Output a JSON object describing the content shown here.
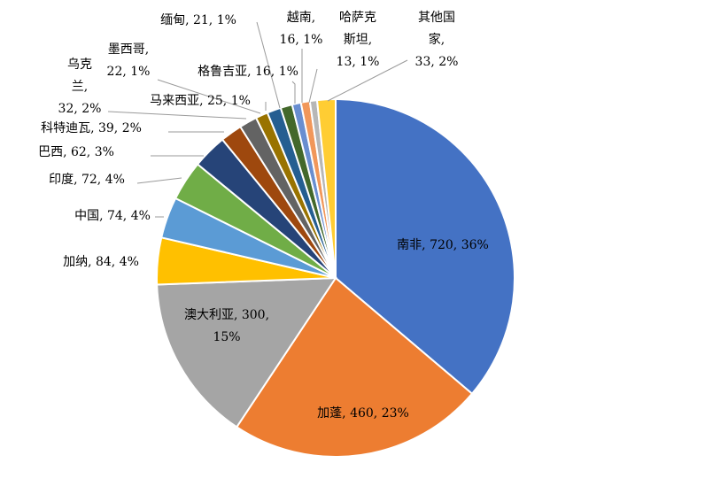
{
  "chart_data": {
    "type": "pie",
    "title": "",
    "slices": [
      {
        "name": "南非",
        "value": 720,
        "percent": "36%",
        "color": "#4472C4"
      },
      {
        "name": "加蓬",
        "value": 460,
        "percent": "23%",
        "color": "#ED7D31"
      },
      {
        "name": "澳大利亚",
        "value": 300,
        "percent": "15%",
        "color": "#A5A5A5"
      },
      {
        "name": "加纳",
        "value": 84,
        "percent": "4%",
        "color": "#FFC000"
      },
      {
        "name": "中国",
        "value": 74,
        "percent": "4%",
        "color": "#5B9BD5"
      },
      {
        "name": "印度",
        "value": 72,
        "percent": "4%",
        "color": "#70AD47"
      },
      {
        "name": "巴西",
        "value": 62,
        "percent": "3%",
        "color": "#264478"
      },
      {
        "name": "科特迪瓦",
        "value": 39,
        "percent": "2%",
        "color": "#9E480E"
      },
      {
        "name": "乌克兰",
        "value": 32,
        "percent": "2%",
        "color": "#636363"
      },
      {
        "name": "墨西哥",
        "value": 22,
        "percent": "1%",
        "color": "#997300"
      },
      {
        "name": "马来西亚",
        "value": 25,
        "percent": "1%",
        "color": "#255E91"
      },
      {
        "name": "缅甸",
        "value": 21,
        "percent": "1%",
        "color": "#43682B"
      },
      {
        "name": "格鲁吉亚",
        "value": 16,
        "percent": "1%",
        "color": "#698ED0"
      },
      {
        "name": "越南",
        "value": 16,
        "percent": "1%",
        "color": "#F1975A"
      },
      {
        "name": "哈萨克斯坦",
        "value": 13,
        "percent": "1%",
        "color": "#B7B7B7"
      },
      {
        "name": "其他国家",
        "value": 33,
        "percent": "2%",
        "color": "#FFCD33"
      }
    ],
    "labels": [
      [
        "南非, 720, 36%"
      ],
      [
        "加蓬, 460, 23%"
      ],
      [
        "澳大利亚, 300,",
        "15%"
      ],
      [
        "加纳, 84, 4%"
      ],
      [
        "中国, 74, 4%"
      ],
      [
        "印度, 72, 4%"
      ],
      [
        "巴西, 62, 3%"
      ],
      [
        "科特迪瓦, 39, 2%"
      ],
      [
        "乌克",
        "兰,",
        "32, 2%"
      ],
      [
        "墨西哥,",
        "22, 1%"
      ],
      [
        "马来西亚, 25, 1%"
      ],
      [
        "缅甸, 21, 1%"
      ],
      [
        "格鲁吉亚, 16, 1%"
      ],
      [
        "越南,",
        "16, 1%"
      ],
      [
        "哈萨克",
        "斯坦,",
        "13, 1%"
      ],
      [
        "其他国",
        "家,",
        "33, 2%"
      ]
    ],
    "legend": "none"
  }
}
